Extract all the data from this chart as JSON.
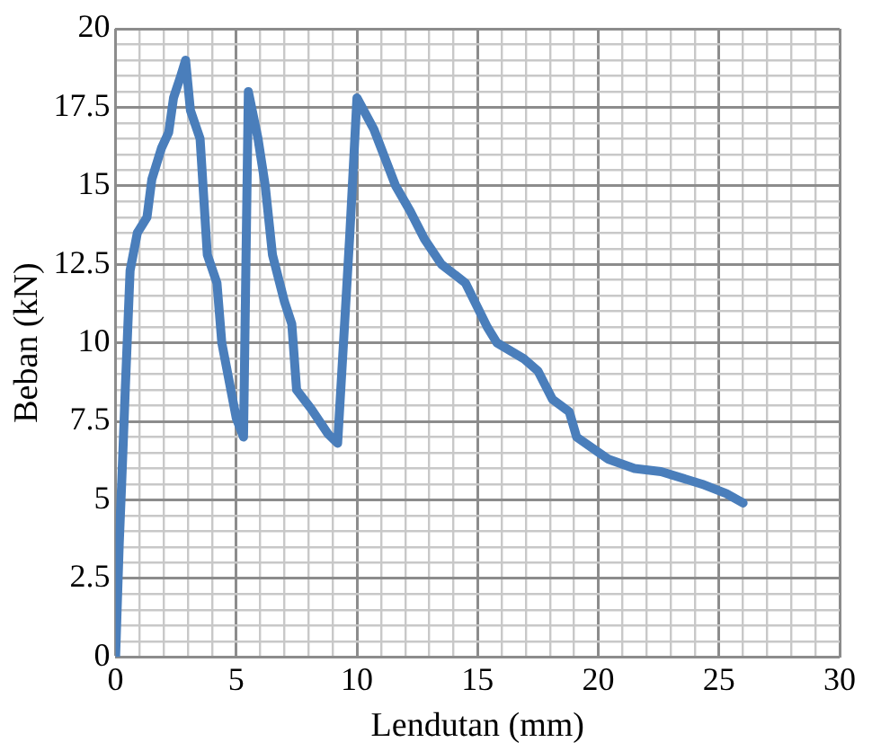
{
  "chart_data": {
    "type": "line",
    "xlabel": "Lendutan (mm)",
    "ylabel": "Beban (kN)",
    "xlim": [
      0,
      30
    ],
    "xticks": [
      0,
      {
        "value": 1,
        "label": null
      },
      {
        "value": 2,
        "label": null
      },
      {
        "value": 3,
        "label": null
      },
      {
        "value": 4,
        "label": null
      },
      5,
      {
        "value": 6,
        "label": null
      },
      {
        "value": 7,
        "label": null
      },
      {
        "value": 8,
        "label": null
      },
      {
        "value": 9,
        "label": null
      },
      10,
      {
        "value": 11,
        "label": null
      },
      {
        "value": 12,
        "label": null
      },
      {
        "value": 13,
        "label": null
      },
      {
        "value": 14,
        "label": null
      },
      15,
      {
        "value": 16,
        "label": null
      },
      {
        "value": 17,
        "label": null
      },
      {
        "value": 18,
        "label": null
      },
      {
        "value": 19,
        "label": null
      },
      20,
      {
        "value": 21,
        "label": null
      },
      {
        "value": 22,
        "label": null
      },
      {
        "value": 23,
        "label": null
      },
      {
        "value": 24,
        "label": null
      },
      25,
      {
        "value": 26,
        "label": null
      },
      {
        "value": 27,
        "label": null
      },
      {
        "value": 28,
        "label": null
      },
      {
        "value": 29,
        "label": null
      },
      30
    ],
    "ylim": [
      0,
      20
    ],
    "yticks": [
      0,
      {
        "value": 0.5,
        "label": null
      },
      {
        "value": 1,
        "label": null
      },
      {
        "value": 1.5,
        "label": null
      },
      {
        "value": 2,
        "label": null
      },
      2.5,
      {
        "value": 3,
        "label": null
      },
      {
        "value": 3.5,
        "label": null
      },
      {
        "value": 4,
        "label": null
      },
      {
        "value": 4.5,
        "label": null
      },
      5,
      {
        "value": 5.5,
        "label": null
      },
      {
        "value": 6,
        "label": null
      },
      {
        "value": 6.5,
        "label": null
      },
      {
        "value": 7,
        "label": null
      },
      7.5,
      {
        "value": 8,
        "label": null
      },
      {
        "value": 8.5,
        "label": null
      },
      {
        "value": 9,
        "label": null
      },
      {
        "value": 9.5,
        "label": null
      },
      10,
      {
        "value": 10.5,
        "label": null
      },
      {
        "value": 11,
        "label": null
      },
      {
        "value": 11.5,
        "label": null
      },
      {
        "value": 12,
        "label": null
      },
      12.5,
      {
        "value": 13,
        "label": null
      },
      {
        "value": 13.5,
        "label": null
      },
      {
        "value": 14,
        "label": null
      },
      {
        "value": 14.5,
        "label": null
      },
      15,
      {
        "value": 15.5,
        "label": null
      },
      {
        "value": 16,
        "label": null
      },
      {
        "value": 16.5,
        "label": null
      },
      {
        "value": 17,
        "label": null
      },
      17.5,
      {
        "value": 18,
        "label": null
      },
      {
        "value": 18.5,
        "label": null
      },
      {
        "value": 19,
        "label": null
      },
      {
        "value": 19.5,
        "label": null
      },
      20
    ],
    "grid": true,
    "legend": false,
    "marker": "none",
    "line_style": "solid",
    "series": [
      {
        "color": "#4a7ebb",
        "x": [
          0,
          0.15,
          0.25,
          0.4,
          0.6,
          0.9,
          1.3,
          1.5,
          1.9,
          2.2,
          2.4,
          2.7,
          2.9,
          3.1,
          3.5,
          3.8,
          4.2,
          4.4,
          5,
          5.3,
          5.5,
          5.9,
          6.2,
          6.5,
          7,
          7.3,
          7.5,
          8.1,
          8.8,
          9.2,
          9.7,
          10,
          10.7,
          11.3,
          11.6,
          12.2,
          12.8,
          13.5,
          14.5,
          15.4,
          15.8,
          16.9,
          17.5,
          18.1,
          18.8,
          19.1,
          20.4,
          21.5,
          22.6,
          24.3,
          25.3,
          26
        ],
        "values": [
          0,
          3.6,
          5.5,
          8.5,
          12.3,
          13.5,
          14,
          15.2,
          16.2,
          16.7,
          17.8,
          18.5,
          19,
          17.4,
          16.5,
          12.8,
          11.9,
          10,
          7.6,
          7,
          18,
          16.5,
          15,
          12.8,
          11.3,
          10.6,
          8.5,
          7.9,
          7.1,
          6.8,
          13.4,
          17.8,
          16.8,
          15.6,
          15,
          14.2,
          13.3,
          12.5,
          11.9,
          10.5,
          10,
          9.5,
          9.1,
          8.2,
          7.8,
          7,
          6.3,
          6,
          5.9,
          5.5,
          5.2,
          4.9
        ]
      }
    ]
  }
}
